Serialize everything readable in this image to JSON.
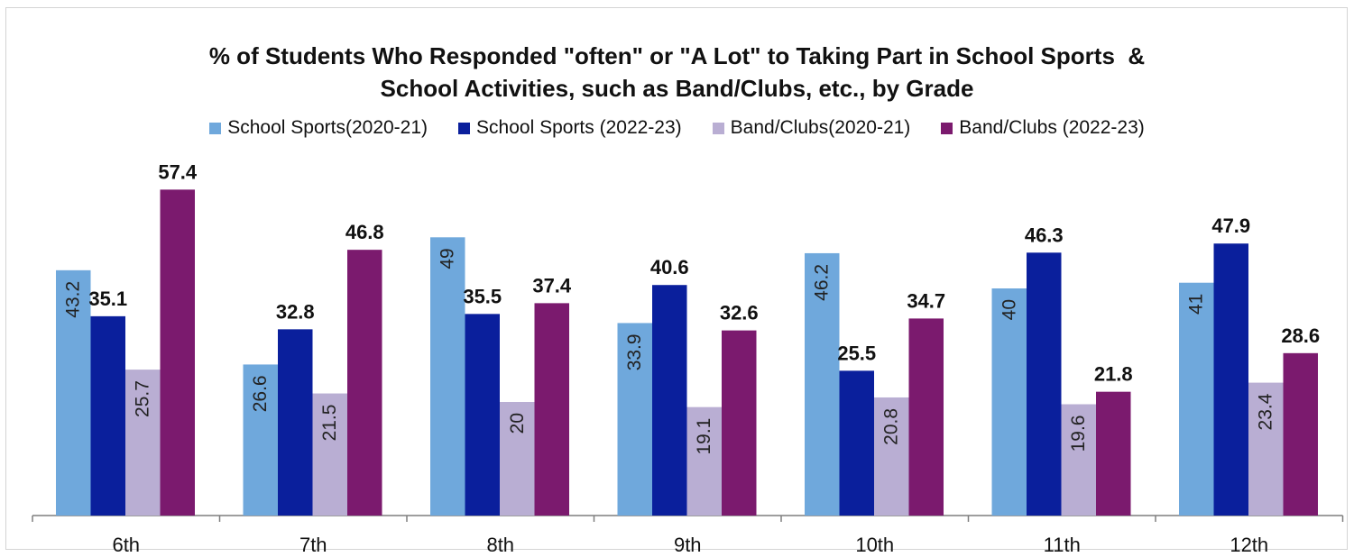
{
  "chart_data": {
    "type": "bar",
    "title": "% of Students Who Responded \"often\" or \"A Lot\" to Taking Part in School Sports  & School Activities, such as Band/Clubs, etc., by Grade",
    "title_lines": [
      "% of Students Who Responded \"often\" or \"A Lot\" to Taking Part in School Sports  &",
      "School Activities, such as Band/Clubs, etc., by Grade"
    ],
    "categories": [
      "6th",
      "7th",
      "8th",
      "9th",
      "10th",
      "11th",
      "12th"
    ],
    "series": [
      {
        "name": "School Sports(2020-21)",
        "color": "#6fa8dc",
        "label_style": "inside-vertical",
        "values": [
          43.2,
          26.6,
          49,
          33.9,
          46.2,
          40,
          41
        ]
      },
      {
        "name": "School Sports (2022-23)",
        "color": "#0a1f9c",
        "label_style": "above",
        "values": [
          35.1,
          32.8,
          35.5,
          40.6,
          25.5,
          46.3,
          47.9
        ]
      },
      {
        "name": "Band/Clubs(2020-21)",
        "color": "#b9aed3",
        "label_style": "inside-vertical",
        "values": [
          25.7,
          21.5,
          20,
          19.1,
          20.8,
          19.6,
          23.4
        ]
      },
      {
        "name": "Band/Clubs (2022-23)",
        "color": "#7b1a6e",
        "label_style": "above",
        "values": [
          57.4,
          46.8,
          37.4,
          32.6,
          34.7,
          21.8,
          28.6
        ]
      }
    ],
    "ylim": [
      0,
      60
    ],
    "grid": false,
    "legend_position": "top"
  }
}
